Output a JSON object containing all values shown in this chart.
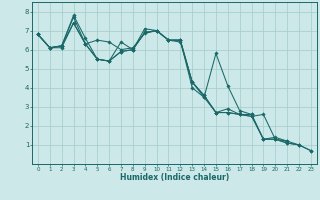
{
  "xlabel": "Humidex (Indice chaleur)",
  "xlim": [
    -0.5,
    23.5
  ],
  "ylim": [
    0,
    8.5
  ],
  "xticks": [
    0,
    1,
    2,
    3,
    4,
    5,
    6,
    7,
    8,
    9,
    10,
    11,
    12,
    13,
    14,
    15,
    16,
    17,
    18,
    19,
    20,
    21,
    22,
    23
  ],
  "yticks": [
    1,
    2,
    3,
    4,
    5,
    6,
    7,
    8
  ],
  "bg_color": "#cce8e8",
  "grid_color": "#aacece",
  "line_color": "#1a6868",
  "lines": [
    {
      "x": [
        0,
        1,
        2,
        3,
        4,
        5,
        6,
        7,
        8,
        9,
        10,
        11,
        12,
        13,
        14,
        15,
        16,
        17,
        18,
        19,
        20,
        21,
        22
      ],
      "y": [
        6.8,
        6.1,
        6.1,
        7.4,
        6.3,
        6.5,
        6.4,
        6.0,
        6.1,
        6.85,
        7.0,
        6.5,
        6.4,
        4.3,
        3.6,
        2.7,
        2.7,
        2.6,
        2.6,
        1.3,
        1.3,
        1.1,
        1.0
      ]
    },
    {
      "x": [
        0,
        1,
        2,
        3,
        4,
        5,
        6,
        7,
        8,
        9,
        10,
        11,
        12,
        13,
        14,
        15,
        16,
        17,
        18,
        19,
        20,
        21
      ],
      "y": [
        6.8,
        6.1,
        6.2,
        7.7,
        6.3,
        5.5,
        5.4,
        5.9,
        6.0,
        7.1,
        7.0,
        6.5,
        6.5,
        4.3,
        3.5,
        5.8,
        4.1,
        2.8,
        2.6,
        1.3,
        1.4,
        1.2
      ]
    },
    {
      "x": [
        0,
        1,
        2,
        3,
        4,
        5,
        6,
        7,
        8,
        9,
        10,
        11,
        12,
        13,
        14,
        15,
        16,
        17,
        18,
        19,
        20,
        21,
        22,
        23
      ],
      "y": [
        6.8,
        6.1,
        6.2,
        7.8,
        6.6,
        5.5,
        5.4,
        6.4,
        6.0,
        6.9,
        7.0,
        6.5,
        6.5,
        4.3,
        3.6,
        2.7,
        2.9,
        2.6,
        2.5,
        2.6,
        1.3,
        1.2,
        1.0,
        0.7
      ]
    },
    {
      "x": [
        0,
        1,
        2,
        3,
        4,
        5,
        6,
        7,
        8,
        9,
        10,
        11,
        12,
        13,
        14,
        15,
        16,
        17,
        18,
        19,
        20,
        21,
        22,
        23
      ],
      "y": [
        6.8,
        6.1,
        6.2,
        7.4,
        6.3,
        5.5,
        5.4,
        5.9,
        6.0,
        6.9,
        7.0,
        6.5,
        6.5,
        4.0,
        3.5,
        2.7,
        2.7,
        2.6,
        2.5,
        1.3,
        1.3,
        1.1,
        1.0,
        0.7
      ]
    }
  ]
}
